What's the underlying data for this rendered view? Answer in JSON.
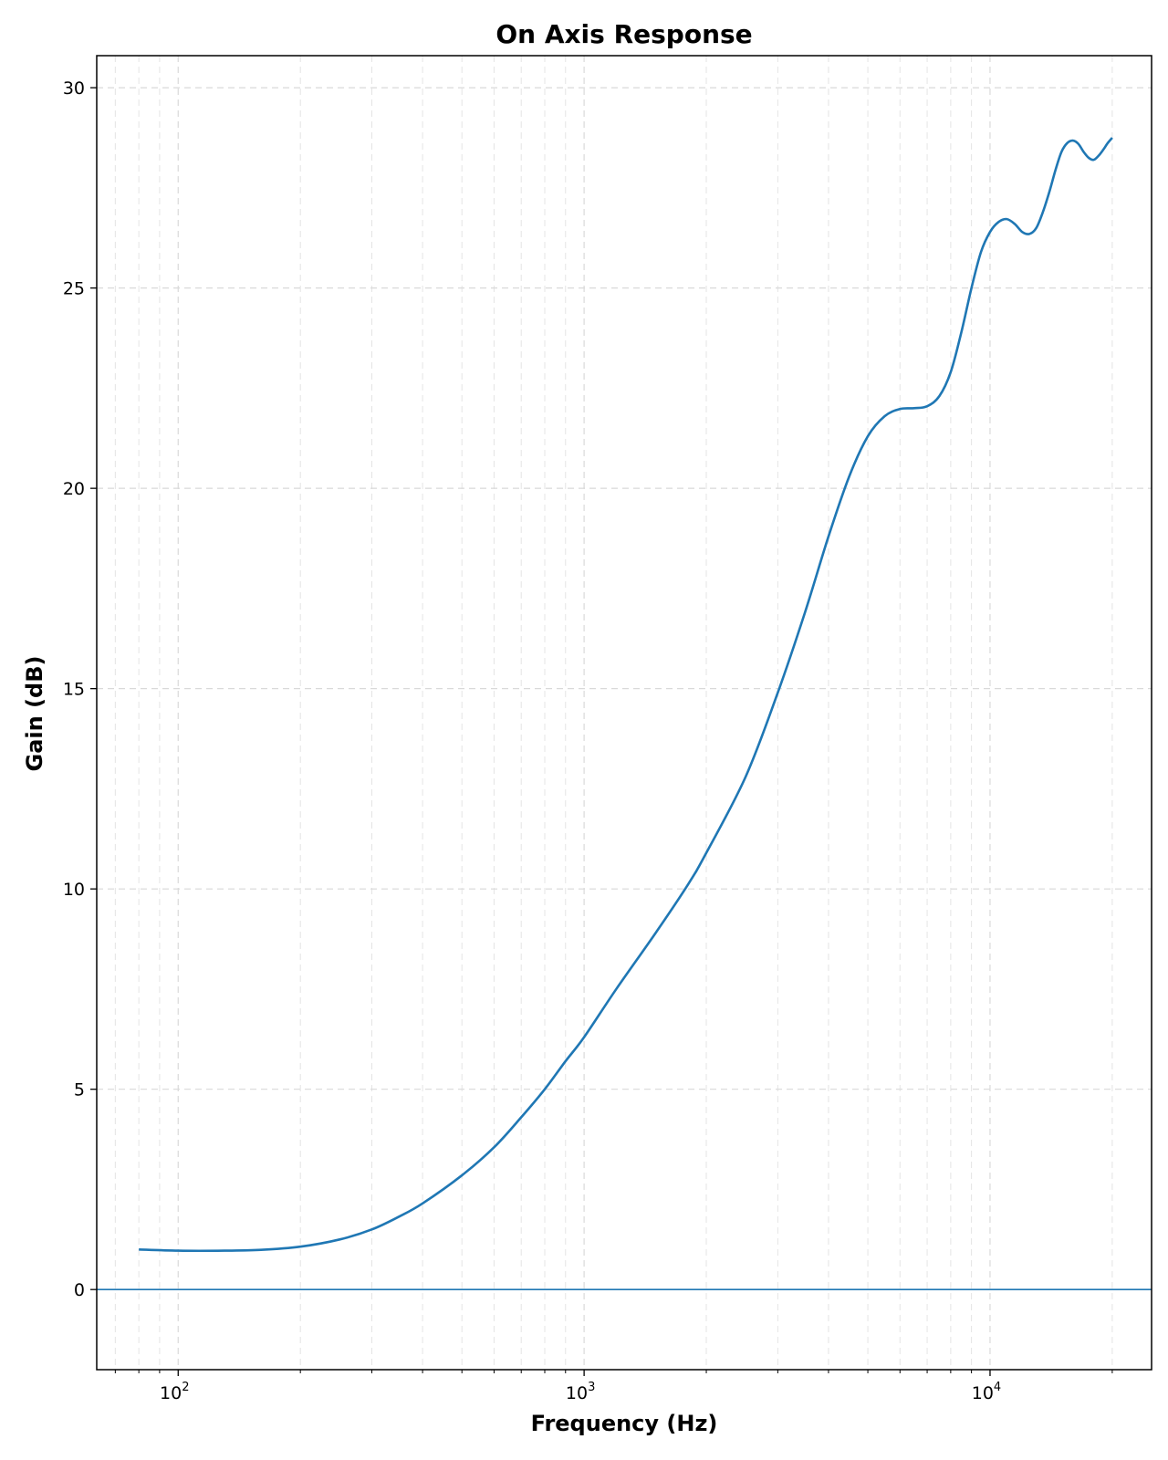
{
  "chart_data": {
    "type": "line",
    "title": "On Axis Response",
    "xlabel": "Frequency (Hz)",
    "ylabel": "Gain (dB)",
    "xscale": "log",
    "xlim": [
      63,
      25000
    ],
    "ylim": [
      -2,
      30.8
    ],
    "xticks": [
      {
        "value": 100,
        "base": "10",
        "exp": "2"
      },
      {
        "value": 1000,
        "base": "10",
        "exp": "3"
      },
      {
        "value": 10000,
        "base": "10",
        "exp": "4"
      }
    ],
    "yticks": [
      0,
      5,
      10,
      15,
      20,
      25,
      30
    ],
    "grid": true,
    "grid_style": "dashed",
    "reference_line": {
      "y": 0,
      "color": "#1f77b4"
    },
    "series": [
      {
        "color": "#1f77b4",
        "x": [
          80,
          100,
          130,
          160,
          200,
          250,
          300,
          350,
          400,
          500,
          600,
          700,
          800,
          900,
          1000,
          1200,
          1500,
          1800,
          2000,
          2500,
          3000,
          3500,
          4000,
          4500,
          5000,
          5500,
          6000,
          6500,
          7000,
          7500,
          8000,
          8500,
          9000,
          9500,
          10000,
          10500,
          11000,
          11500,
          12000,
          12500,
          13000,
          13500,
          14000,
          14500,
          15000,
          15500,
          16000,
          16500,
          17000,
          17500,
          18000,
          18500,
          19000,
          19500,
          20000
        ],
        "y": [
          1.0,
          0.97,
          0.97,
          0.99,
          1.07,
          1.25,
          1.5,
          1.82,
          2.15,
          2.85,
          3.55,
          4.3,
          5.0,
          5.7,
          6.3,
          7.5,
          8.9,
          10.1,
          10.9,
          12.8,
          14.9,
          16.9,
          18.8,
          20.3,
          21.3,
          21.8,
          21.98,
          22.0,
          22.05,
          22.3,
          22.9,
          23.9,
          25.0,
          25.9,
          26.4,
          26.65,
          26.72,
          26.6,
          26.4,
          26.35,
          26.5,
          26.9,
          27.4,
          27.95,
          28.4,
          28.62,
          28.68,
          28.6,
          28.4,
          28.25,
          28.2,
          28.3,
          28.45,
          28.62,
          28.75
        ]
      }
    ]
  }
}
